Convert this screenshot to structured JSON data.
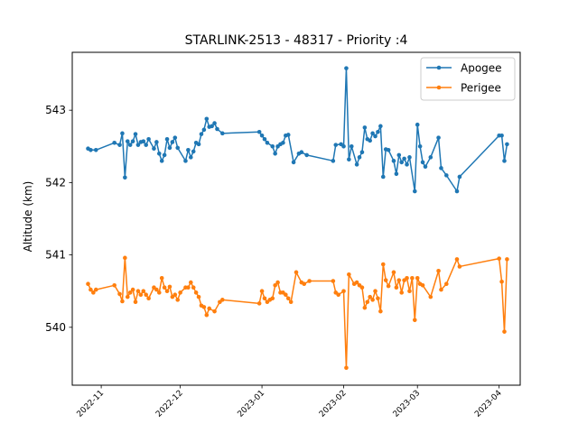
{
  "chart_data": {
    "type": "line",
    "title": "STARLINK-2513 - 48317 - Priority :4",
    "xlabel": "",
    "ylabel": "Altitude (km)",
    "x_ticks": [
      "2022-11",
      "2022-12",
      "2023-01",
      "2023-02",
      "2023-03",
      "2023-04"
    ],
    "y_ticks": [
      "540",
      "541",
      "542",
      "543"
    ],
    "xlim": [
      "2022-10-21",
      "2023-04-09"
    ],
    "ylim": [
      539.2,
      543.8
    ],
    "grid": false,
    "legend": "top-right",
    "series": [
      {
        "name": "Apogee",
        "color": "#1f77b4",
        "points": [
          [
            "2022-10-27",
            542.47
          ],
          [
            "2022-10-28",
            542.45
          ],
          [
            "2022-10-30",
            542.45
          ],
          [
            "2022-11-06",
            542.55
          ],
          [
            "2022-11-08",
            542.52
          ],
          [
            "2022-11-09",
            542.68
          ],
          [
            "2022-11-10",
            542.07
          ],
          [
            "2022-11-11",
            542.57
          ],
          [
            "2022-11-12",
            542.52
          ],
          [
            "2022-11-13",
            542.57
          ],
          [
            "2022-11-14",
            542.67
          ],
          [
            "2022-11-15",
            542.52
          ],
          [
            "2022-11-16",
            542.56
          ],
          [
            "2022-11-17",
            542.57
          ],
          [
            "2022-11-18",
            542.52
          ],
          [
            "2022-11-19",
            542.6
          ],
          [
            "2022-11-21",
            542.47
          ],
          [
            "2022-11-22",
            542.56
          ],
          [
            "2022-11-23",
            542.4
          ],
          [
            "2022-11-24",
            542.3
          ],
          [
            "2022-11-25",
            542.38
          ],
          [
            "2022-11-26",
            542.6
          ],
          [
            "2022-11-27",
            542.48
          ],
          [
            "2022-11-28",
            542.56
          ],
          [
            "2022-11-29",
            542.62
          ],
          [
            "2022-11-30",
            542.48
          ],
          [
            "2022-12-03",
            542.3
          ],
          [
            "2022-12-04",
            542.45
          ],
          [
            "2022-12-05",
            542.35
          ],
          [
            "2022-12-06",
            542.43
          ],
          [
            "2022-12-07",
            542.55
          ],
          [
            "2022-12-08",
            542.53
          ],
          [
            "2022-12-09",
            542.67
          ],
          [
            "2022-12-10",
            542.73
          ],
          [
            "2022-12-11",
            542.88
          ],
          [
            "2022-12-12",
            542.77
          ],
          [
            "2022-12-13",
            542.78
          ],
          [
            "2022-12-14",
            542.82
          ],
          [
            "2022-12-15",
            542.74
          ],
          [
            "2022-12-17",
            542.68
          ],
          [
            "2022-12-31",
            542.7
          ],
          [
            "2023-01-01",
            542.65
          ],
          [
            "2023-01-02",
            542.6
          ],
          [
            "2023-01-03",
            542.55
          ],
          [
            "2023-01-05",
            542.5
          ],
          [
            "2023-01-06",
            542.4
          ],
          [
            "2023-01-07",
            542.5
          ],
          [
            "2023-01-08",
            542.53
          ],
          [
            "2023-01-09",
            542.55
          ],
          [
            "2023-01-10",
            542.65
          ],
          [
            "2023-01-11",
            542.66
          ],
          [
            "2023-01-13",
            542.28
          ],
          [
            "2023-01-15",
            542.4
          ],
          [
            "2023-01-16",
            542.42
          ],
          [
            "2023-01-18",
            542.38
          ],
          [
            "2023-01-28",
            542.3
          ],
          [
            "2023-01-29",
            542.52
          ],
          [
            "2023-01-31",
            542.53
          ],
          [
            "2023-02-01",
            542.5
          ],
          [
            "2023-02-02",
            543.58
          ],
          [
            "2023-02-03",
            542.32
          ],
          [
            "2023-02-04",
            542.5
          ],
          [
            "2023-02-06",
            542.25
          ],
          [
            "2023-02-07",
            542.35
          ],
          [
            "2023-02-08",
            542.42
          ],
          [
            "2023-02-09",
            542.76
          ],
          [
            "2023-02-10",
            542.6
          ],
          [
            "2023-02-11",
            542.58
          ],
          [
            "2023-02-12",
            542.68
          ],
          [
            "2023-02-13",
            542.64
          ],
          [
            "2023-02-14",
            542.7
          ],
          [
            "2023-02-15",
            542.78
          ],
          [
            "2023-02-16",
            542.08
          ],
          [
            "2023-02-17",
            542.46
          ],
          [
            "2023-02-18",
            542.45
          ],
          [
            "2023-02-20",
            542.3
          ],
          [
            "2023-02-21",
            542.12
          ],
          [
            "2023-02-22",
            542.38
          ],
          [
            "2023-02-23",
            542.28
          ],
          [
            "2023-02-24",
            542.33
          ],
          [
            "2023-02-25",
            542.25
          ],
          [
            "2023-02-26",
            542.35
          ],
          [
            "2023-02-28",
            541.88
          ],
          [
            "2023-03-01",
            542.8
          ],
          [
            "2023-03-02",
            542.5
          ],
          [
            "2023-03-03",
            542.28
          ],
          [
            "2023-03-04",
            542.22
          ],
          [
            "2023-03-06",
            542.35
          ],
          [
            "2023-03-09",
            542.62
          ],
          [
            "2023-03-10",
            542.2
          ],
          [
            "2023-03-12",
            542.1
          ],
          [
            "2023-03-16",
            541.88
          ],
          [
            "2023-03-17",
            542.08
          ],
          [
            "2023-04-01",
            542.65
          ],
          [
            "2023-04-02",
            542.65
          ],
          [
            "2023-04-03",
            542.3
          ],
          [
            "2023-04-04",
            542.53
          ]
        ]
      },
      {
        "name": "Perigee",
        "color": "#ff7f0e",
        "points": [
          [
            "2022-10-27",
            540.6
          ],
          [
            "2022-10-28",
            540.52
          ],
          [
            "2022-10-29",
            540.48
          ],
          [
            "2022-10-30",
            540.52
          ],
          [
            "2022-11-06",
            540.58
          ],
          [
            "2022-11-08",
            540.46
          ],
          [
            "2022-11-09",
            540.36
          ],
          [
            "2022-11-10",
            540.96
          ],
          [
            "2022-11-11",
            540.42
          ],
          [
            "2022-11-12",
            540.48
          ],
          [
            "2022-11-13",
            540.52
          ],
          [
            "2022-11-14",
            540.35
          ],
          [
            "2022-11-15",
            540.5
          ],
          [
            "2022-11-16",
            540.45
          ],
          [
            "2022-11-17",
            540.5
          ],
          [
            "2022-11-18",
            540.45
          ],
          [
            "2022-11-19",
            540.4
          ],
          [
            "2022-11-21",
            540.55
          ],
          [
            "2022-11-22",
            540.52
          ],
          [
            "2022-11-23",
            540.48
          ],
          [
            "2022-11-24",
            540.68
          ],
          [
            "2022-11-25",
            540.55
          ],
          [
            "2022-11-26",
            540.5
          ],
          [
            "2022-11-27",
            540.56
          ],
          [
            "2022-11-28",
            540.42
          ],
          [
            "2022-11-29",
            540.45
          ],
          [
            "2022-11-30",
            540.38
          ],
          [
            "2022-12-01",
            540.48
          ],
          [
            "2022-12-03",
            540.55
          ],
          [
            "2022-12-04",
            540.55
          ],
          [
            "2022-12-05",
            540.62
          ],
          [
            "2022-12-06",
            540.55
          ],
          [
            "2022-12-07",
            540.48
          ],
          [
            "2022-12-08",
            540.42
          ],
          [
            "2022-12-09",
            540.3
          ],
          [
            "2022-12-10",
            540.28
          ],
          [
            "2022-12-11",
            540.17
          ],
          [
            "2022-12-12",
            540.26
          ],
          [
            "2022-12-14",
            540.22
          ],
          [
            "2022-12-16",
            540.35
          ],
          [
            "2022-12-17",
            540.38
          ],
          [
            "2022-12-31",
            540.33
          ],
          [
            "2023-01-01",
            540.5
          ],
          [
            "2023-01-02",
            540.4
          ],
          [
            "2023-01-03",
            540.35
          ],
          [
            "2023-01-04",
            540.38
          ],
          [
            "2023-01-05",
            540.4
          ],
          [
            "2023-01-06",
            540.58
          ],
          [
            "2023-01-07",
            540.62
          ],
          [
            "2023-01-08",
            540.48
          ],
          [
            "2023-01-09",
            540.48
          ],
          [
            "2023-01-10",
            540.45
          ],
          [
            "2023-01-11",
            540.4
          ],
          [
            "2023-01-12",
            540.35
          ],
          [
            "2023-01-14",
            540.76
          ],
          [
            "2023-01-16",
            540.62
          ],
          [
            "2023-01-17",
            540.6
          ],
          [
            "2023-01-19",
            540.64
          ],
          [
            "2023-01-28",
            540.64
          ],
          [
            "2023-01-29",
            540.48
          ],
          [
            "2023-01-30",
            540.45
          ],
          [
            "2023-02-01",
            540.5
          ],
          [
            "2023-02-02",
            539.44
          ],
          [
            "2023-02-03",
            540.73
          ],
          [
            "2023-02-05",
            540.6
          ],
          [
            "2023-02-06",
            540.62
          ],
          [
            "2023-02-07",
            540.58
          ],
          [
            "2023-02-08",
            540.55
          ],
          [
            "2023-02-09",
            540.27
          ],
          [
            "2023-02-10",
            540.35
          ],
          [
            "2023-02-11",
            540.42
          ],
          [
            "2023-02-12",
            540.38
          ],
          [
            "2023-02-13",
            540.5
          ],
          [
            "2023-02-14",
            540.4
          ],
          [
            "2023-02-15",
            540.22
          ],
          [
            "2023-02-16",
            540.87
          ],
          [
            "2023-02-17",
            540.65
          ],
          [
            "2023-02-18",
            540.57
          ],
          [
            "2023-02-20",
            540.76
          ],
          [
            "2023-02-21",
            540.55
          ],
          [
            "2023-02-22",
            540.65
          ],
          [
            "2023-02-23",
            540.48
          ],
          [
            "2023-02-24",
            540.65
          ],
          [
            "2023-02-25",
            540.68
          ],
          [
            "2023-02-26",
            540.5
          ],
          [
            "2023-02-27",
            540.68
          ],
          [
            "2023-02-28",
            540.1
          ],
          [
            "2023-03-01",
            540.68
          ],
          [
            "2023-03-02",
            540.6
          ],
          [
            "2023-03-03",
            540.58
          ],
          [
            "2023-03-06",
            540.42
          ],
          [
            "2023-03-09",
            540.78
          ],
          [
            "2023-03-10",
            540.52
          ],
          [
            "2023-03-12",
            540.6
          ],
          [
            "2023-03-16",
            540.94
          ],
          [
            "2023-03-17",
            540.84
          ],
          [
            "2023-04-01",
            540.95
          ],
          [
            "2023-04-02",
            540.63
          ],
          [
            "2023-04-03",
            539.94
          ],
          [
            "2023-04-04",
            540.94
          ]
        ]
      }
    ]
  }
}
